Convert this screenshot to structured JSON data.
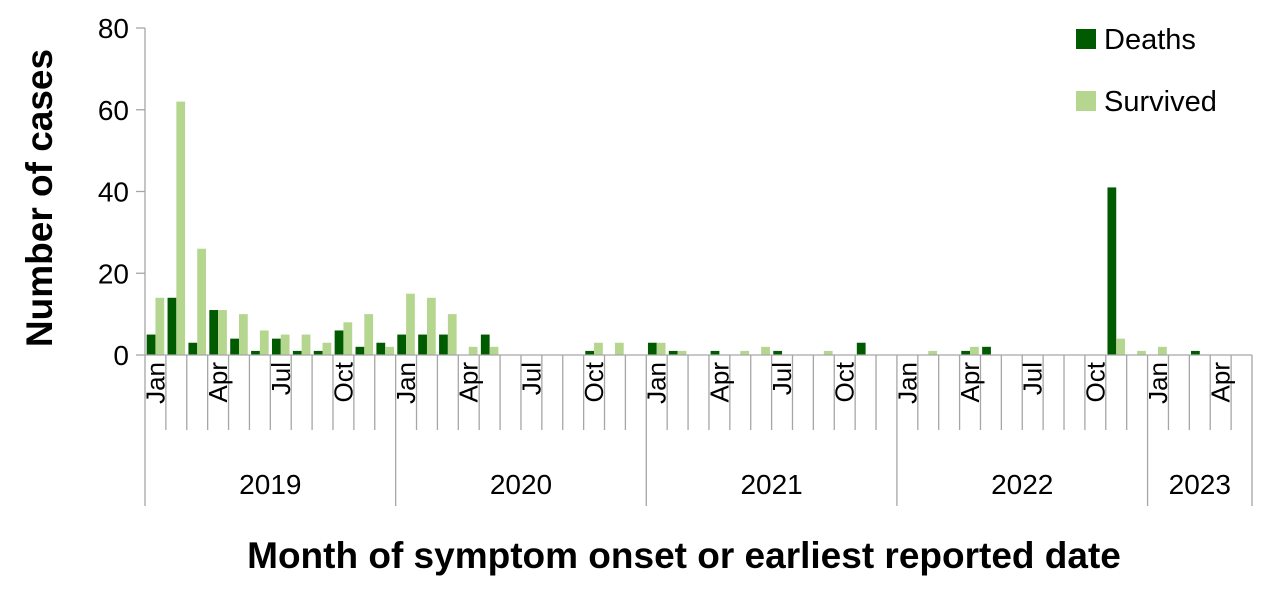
{
  "chart_data": {
    "type": "bar",
    "title": "",
    "xlabel": "Month of symptom onset or earliest reported date",
    "ylabel": "Number of cases",
    "ylim": [
      0,
      80
    ],
    "yticks": [
      0,
      20,
      40,
      60,
      80
    ],
    "months_shown": [
      "Jan",
      "Apr",
      "Jul",
      "Oct"
    ],
    "years": [
      {
        "label": "2019",
        "months": 12
      },
      {
        "label": "2020",
        "months": 12
      },
      {
        "label": "2021",
        "months": 12
      },
      {
        "label": "2022",
        "months": 12
      },
      {
        "label": "2023",
        "months": 5
      }
    ],
    "categories": [
      "Jan 2019",
      "Feb 2019",
      "Mar 2019",
      "Apr 2019",
      "May 2019",
      "Jun 2019",
      "Jul 2019",
      "Aug 2019",
      "Sep 2019",
      "Oct 2019",
      "Nov 2019",
      "Dec 2019",
      "Jan 2020",
      "Feb 2020",
      "Mar 2020",
      "Apr 2020",
      "May 2020",
      "Jun 2020",
      "Jul 2020",
      "Aug 2020",
      "Sep 2020",
      "Oct 2020",
      "Nov 2020",
      "Dec 2020",
      "Jan 2021",
      "Feb 2021",
      "Mar 2021",
      "Apr 2021",
      "May 2021",
      "Jun 2021",
      "Jul 2021",
      "Aug 2021",
      "Sep 2021",
      "Oct 2021",
      "Nov 2021",
      "Dec 2021",
      "Jan 2022",
      "Feb 2022",
      "Mar 2022",
      "Apr 2022",
      "May 2022",
      "Jun 2022",
      "Jul 2022",
      "Aug 2022",
      "Sep 2022",
      "Oct 2022",
      "Nov 2022",
      "Dec 2022",
      "Jan 2023",
      "Feb 2023",
      "Mar 2023",
      "Apr 2023",
      "May 2023"
    ],
    "series": [
      {
        "name": "Deaths",
        "color": "#005a00",
        "values": [
          5,
          14,
          3,
          11,
          4,
          1,
          4,
          1,
          1,
          6,
          2,
          3,
          5,
          5,
          5,
          0,
          5,
          0,
          0,
          0,
          0,
          1,
          0,
          0,
          3,
          1,
          0,
          1,
          0,
          0,
          1,
          0,
          0,
          0,
          3,
          0,
          0,
          0,
          0,
          1,
          2,
          0,
          0,
          0,
          0,
          0,
          41,
          0,
          0,
          0,
          1,
          0,
          0
        ]
      },
      {
        "name": "Survived",
        "color": "#b5d68f",
        "values": [
          14,
          62,
          26,
          11,
          10,
          6,
          5,
          5,
          3,
          8,
          10,
          2,
          15,
          14,
          10,
          2,
          2,
          0,
          0,
          0,
          0,
          3,
          3,
          0,
          3,
          1,
          0,
          0,
          1,
          2,
          0,
          0,
          1,
          0,
          0,
          0,
          0,
          1,
          0,
          2,
          0,
          0,
          0,
          0,
          0,
          0,
          4,
          1,
          2,
          0,
          0,
          0,
          0
        ]
      }
    ],
    "legend_position": "top-right"
  }
}
